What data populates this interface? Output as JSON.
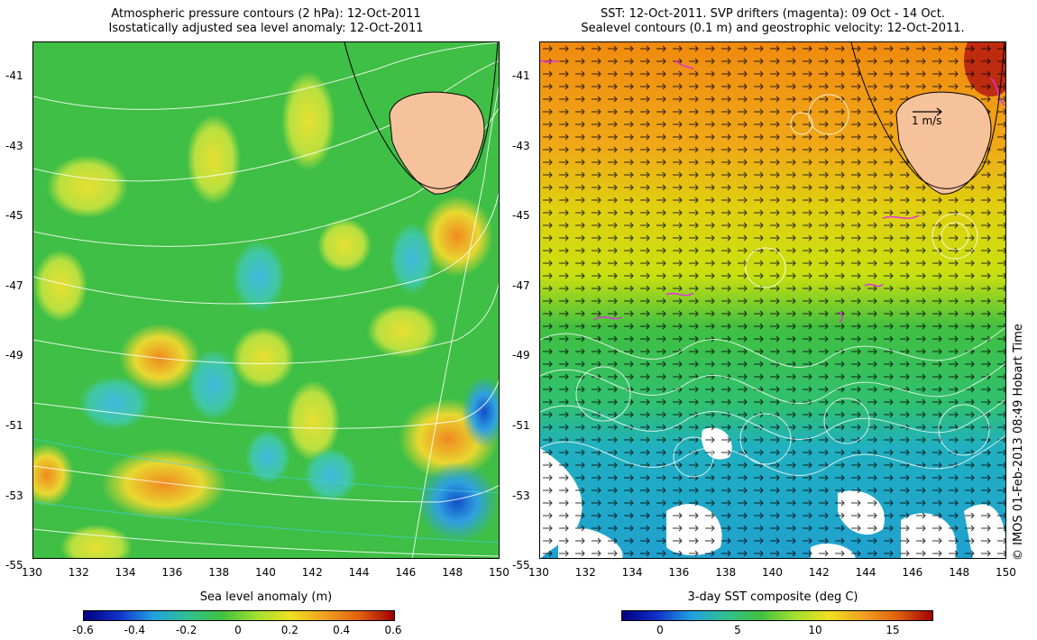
{
  "left_panel": {
    "title_line1": "Atmospheric pressure contours (2 hPa): 12-Oct-2011",
    "title_line2": "Isostatically adjusted sea level anomaly: 12-Oct-2011",
    "colorbar_title": "Sea level anomaly (m)",
    "colorbar_ticks": [
      "-0.6",
      "-0.4",
      "-0.2",
      "0",
      "0.2",
      "0.4",
      "0.6"
    ]
  },
  "right_panel": {
    "title_line1": "SST: 12-Oct-2011. SVP drifters (magenta): 09 Oct - 14 Oct.",
    "title_line2": "Sealevel contours (0.1 m) and geostrophic velocity: 12-Oct-2011.",
    "colorbar_title": "3-day SST composite (deg C)",
    "colorbar_ticks": [
      "0",
      "5",
      "10",
      "15"
    ],
    "velocity_scale_label": "1 m/s"
  },
  "x_ticks": [
    "130",
    "132",
    "134",
    "136",
    "138",
    "140",
    "142",
    "144",
    "146",
    "148",
    "150"
  ],
  "y_ticks": [
    "-41",
    "-43",
    "-45",
    "-47",
    "-49",
    "-51",
    "-53",
    "-55"
  ],
  "credit": "© IMOS 01-Feb-2013 08:49 Hobart Time",
  "colors": {
    "land": "#f6c29c",
    "anomaly_base": "#3fbf45",
    "sst_warm": "#f08a10",
    "sst_mid": "#c8e010",
    "sst_cold": "#20a0d0"
  }
}
